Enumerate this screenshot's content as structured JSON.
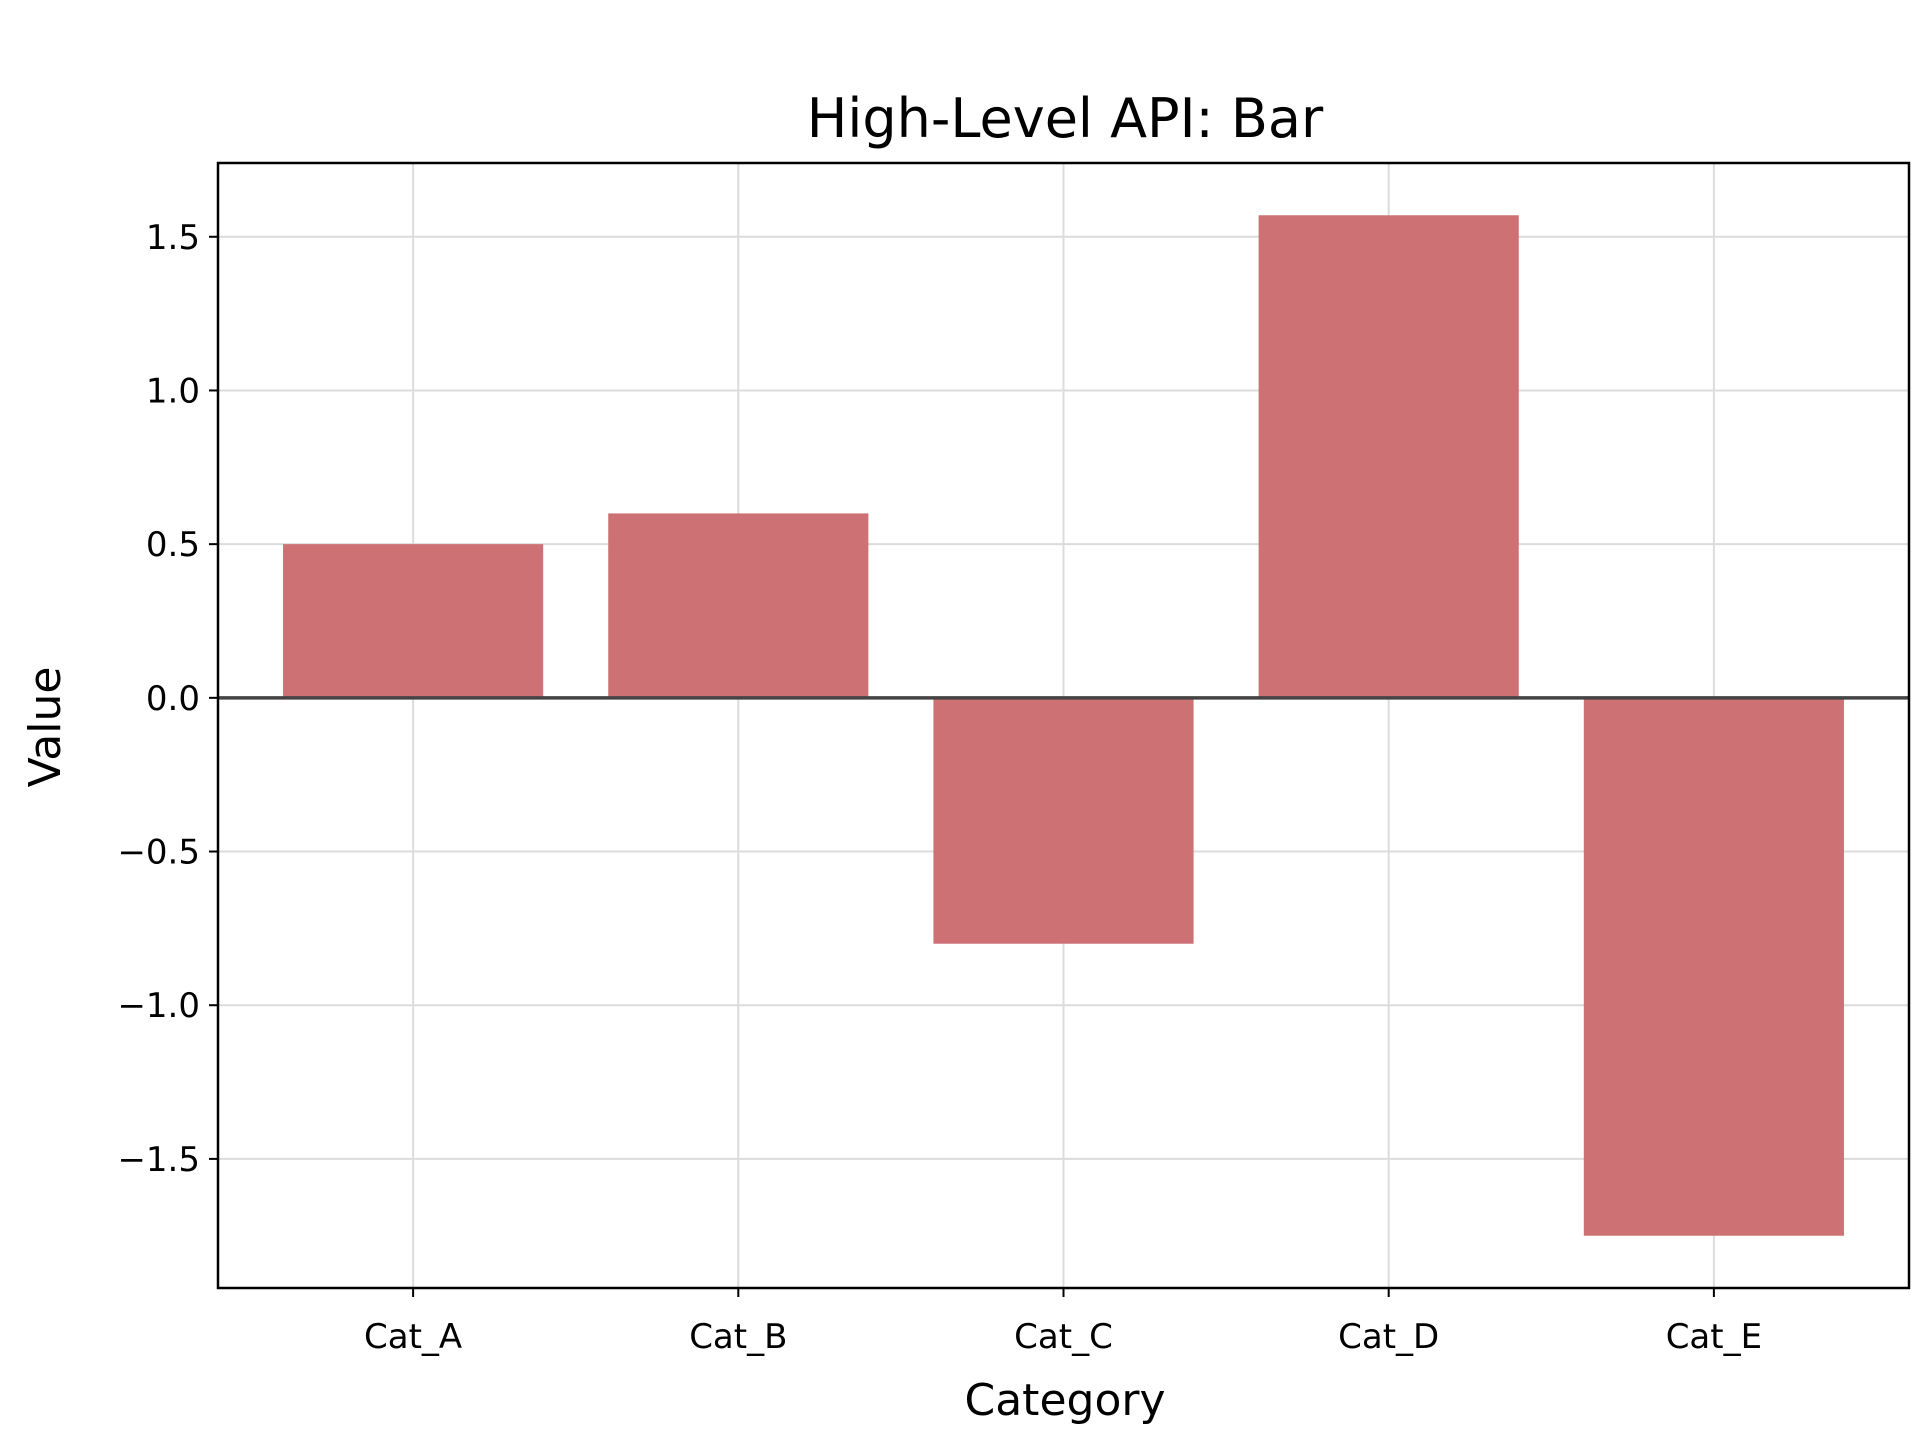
{
  "chart_data": {
    "type": "bar",
    "title": "High-Level API: Bar",
    "xlabel": "Category",
    "ylabel": "Value",
    "categories": [
      "Cat_A",
      "Cat_B",
      "Cat_C",
      "Cat_D",
      "Cat_E"
    ],
    "values": [
      0.5,
      0.6,
      -0.8,
      1.57,
      -1.75
    ],
    "ylim": [
      -1.92,
      1.74
    ],
    "yticks": [
      -1.5,
      -1.0,
      -0.5,
      0.0,
      0.5,
      1.0,
      1.5
    ],
    "ytick_labels": [
      "−1.5",
      "−1.0",
      "−0.5",
      "0.0",
      "0.5",
      "1.0",
      "1.5"
    ],
    "bar_color": "#cd7174",
    "grid": true,
    "zero_line": true
  }
}
